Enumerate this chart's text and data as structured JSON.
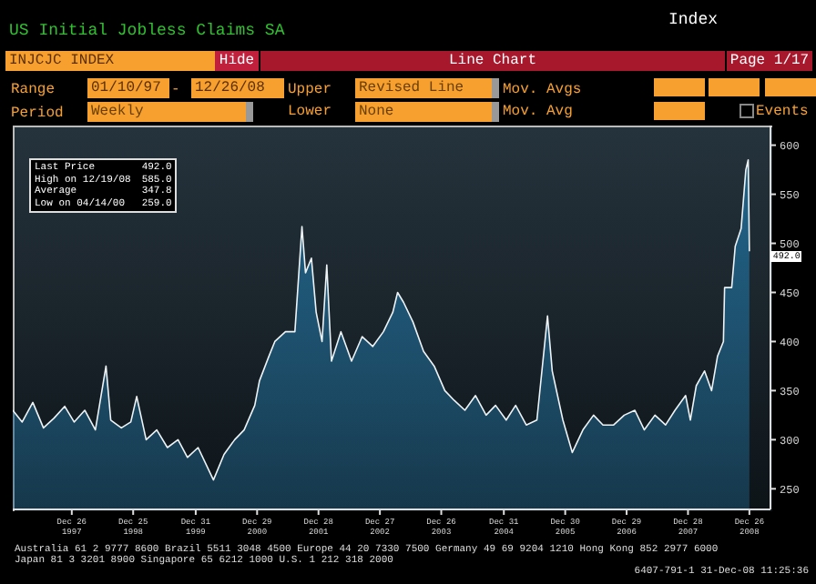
{
  "chart_data": {
    "type": "area",
    "title": "US Initial Jobless Claims SA",
    "x": [
      "1997-01-10",
      "1997-03-07",
      "1997-05-09",
      "1997-07-11",
      "1997-09-12",
      "1997-11-14",
      "1998-01-09",
      "1998-03-13",
      "1998-05-15",
      "1998-07-17",
      "1998-08-14",
      "1998-10-16",
      "1998-12-11",
      "1999-01-15",
      "1999-03-12",
      "1999-05-14",
      "1999-07-16",
      "1999-09-17",
      "1999-11-12",
      "2000-01-14",
      "2000-04-14",
      "2000-06-16",
      "2000-08-18",
      "2000-10-13",
      "2000-12-15",
      "2001-01-12",
      "2001-03-09",
      "2001-04-13",
      "2001-06-15",
      "2001-08-10",
      "2001-09-21",
      "2001-10-12",
      "2001-11-16",
      "2001-12-14",
      "2002-01-18",
      "2002-02-15",
      "2002-03-15",
      "2002-05-10",
      "2002-07-12",
      "2002-09-13",
      "2002-11-15",
      "2003-01-17",
      "2003-03-14",
      "2003-04-11",
      "2003-05-16",
      "2003-07-11",
      "2003-09-12",
      "2003-11-14",
      "2004-01-16",
      "2004-03-12",
      "2004-05-14",
      "2004-07-16",
      "2004-09-17",
      "2004-11-12",
      "2005-01-14",
      "2005-03-11",
      "2005-05-13",
      "2005-07-15",
      "2005-09-16",
      "2005-10-14",
      "2005-12-16",
      "2006-02-10",
      "2006-04-14",
      "2006-06-16",
      "2006-08-11",
      "2006-10-13",
      "2006-12-15",
      "2007-02-16",
      "2007-04-13",
      "2007-06-15",
      "2007-08-17",
      "2007-10-12",
      "2007-12-14",
      "2008-01-11",
      "2008-02-15",
      "2008-04-04",
      "2008-05-16",
      "2008-06-20",
      "2008-07-25",
      "2008-08-01",
      "2008-09-12",
      "2008-10-03",
      "2008-11-07",
      "2008-11-21",
      "2008-12-05",
      "2008-12-19",
      "2008-12-26"
    ],
    "series": [
      {
        "color": "#1f6288",
        "values": [
          330,
          318,
          338,
          312,
          322,
          334,
          318,
          330,
          310,
          375,
          320,
          312,
          318,
          344,
          300,
          310,
          292,
          300,
          282,
          292,
          259,
          285,
          300,
          310,
          335,
          360,
          385,
          400,
          410,
          410,
          517,
          470,
          485,
          430,
          400,
          478,
          380,
          410,
          380,
          405,
          395,
          410,
          430,
          450,
          440,
          420,
          390,
          375,
          350,
          340,
          330,
          345,
          325,
          335,
          320,
          335,
          315,
          320,
          426,
          370,
          320,
          287,
          310,
          325,
          315,
          315,
          325,
          330,
          310,
          325,
          315,
          330,
          345,
          320,
          355,
          370,
          350,
          385,
          400,
          455,
          455,
          497,
          515,
          545,
          575,
          585,
          492
        ]
      }
    ],
    "xlim": [
      "1997-01-10",
      "2009-04-30"
    ],
    "xticks": [
      {
        "value": "1997-12-26",
        "label": "Dec 26 1997"
      },
      {
        "value": "1998-12-25",
        "label": "Dec 25 1998"
      },
      {
        "value": "1999-12-31",
        "label": "Dec 31 1999"
      },
      {
        "value": "2000-12-29",
        "label": "Dec 29 2000"
      },
      {
        "value": "2001-12-28",
        "label": "Dec 28 2001"
      },
      {
        "value": "2002-12-27",
        "label": "Dec 27 2002"
      },
      {
        "value": "2003-12-26",
        "label": "Dec 26 2003"
      },
      {
        "value": "2004-12-31",
        "label": "Dec 31 2004"
      },
      {
        "value": "2005-12-30",
        "label": "Dec 30 2005"
      },
      {
        "value": "2006-12-29",
        "label": "Dec 29 2006"
      },
      {
        "value": "2007-12-28",
        "label": "Dec 28 2007"
      },
      {
        "value": "2008-12-26",
        "label": "Dec 26 2008"
      }
    ],
    "ylim": [
      229,
      620
    ],
    "yticks": [
      250,
      300,
      350,
      400,
      450,
      500,
      550,
      600
    ],
    "annotations": [
      "INJCJC INDEX",
      "Hide",
      "Line Chart",
      "Page 1/17",
      "Range",
      "01/10/97",
      "-",
      "12/26/08",
      "Upper",
      "Revised Line",
      "Mov. Avgs",
      "Period",
      "Weekly",
      "Lower",
      "None",
      "Mov. Avg",
      "Events",
      "Index",
      "Last Price 492.0",
      "High on 12/19/08 585.0",
      "Average 347.8",
      "Low on 04/14/00 259.0",
      "Australia 61 2 9777 8600 Brazil 5511 3048 4500 Europe 44 20 7330 7500 Germany 49 69 9204 1210 Hong Kong 852 2977 6000",
      "Japan 81 3 3201 8900 Singapore 65 6212 1000 U.S. 1 212 318 2000",
      "6407-791-1 31-Dec-08 11:25:36",
      {
        "text": "492.0",
        "x": "2008-12-26",
        "y": 492
      }
    ]
  }
}
